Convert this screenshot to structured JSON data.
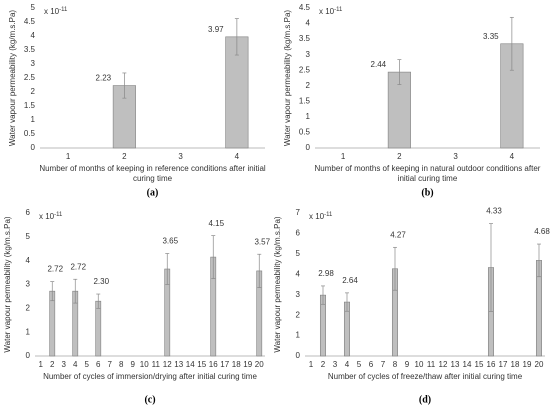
{
  "chart_data": [
    {
      "type": "bar",
      "caption": "(a)",
      "y_label": "Water vapour permeability (kg/m.s.Pa)",
      "y_multiplier": {
        "base": "x 10",
        "exponent": "-11"
      },
      "x_label": "Number of months of keeping in reference conditions after initial curing time",
      "categories": [
        "1",
        "2",
        "3",
        "4"
      ],
      "values": [
        null,
        2.23,
        null,
        3.97
      ],
      "errors": [
        null,
        0.45,
        null,
        0.65
      ],
      "color": "#bfbfbf",
      "ylim": [
        0,
        5
      ],
      "yticks": [
        0,
        0.5,
        1,
        1.5,
        2,
        2.5,
        3,
        3.5,
        4,
        4.5,
        5
      ],
      "grid": false
    },
    {
      "type": "bar",
      "caption": "(b)",
      "y_label": "Water vapour permeability (kg/m.s.Pa)",
      "y_multiplier": {
        "base": "x 10",
        "exponent": "-11"
      },
      "x_label": "Number of months of keeping in natural outdoor conditions after initial curing time",
      "categories": [
        "1",
        "2",
        "3",
        "4"
      ],
      "values": [
        null,
        2.44,
        null,
        3.35
      ],
      "errors": [
        null,
        0.4,
        null,
        0.85
      ],
      "color": "#bfbfbf",
      "ylim": [
        0,
        4.5
      ],
      "yticks": [
        0,
        0.5,
        1,
        1.5,
        2,
        2.5,
        3,
        3.5,
        4,
        4.5
      ],
      "grid": false
    },
    {
      "type": "bar",
      "caption": "(c)",
      "y_label": "Water vapour permeability (kg/m.s.Pa)",
      "y_multiplier": {
        "base": "x 10",
        "exponent": "-11"
      },
      "x_label": "Number of cycles of immersion/drying  after initial curing time",
      "categories": [
        "1",
        "2",
        "3",
        "4",
        "5",
        "6",
        "7",
        "8",
        "9",
        "10",
        "11",
        "12",
        "13",
        "14",
        "15",
        "16",
        "17",
        "18",
        "19",
        "20"
      ],
      "values": [
        null,
        2.72,
        null,
        2.72,
        null,
        2.3,
        null,
        null,
        null,
        null,
        null,
        3.65,
        null,
        null,
        null,
        4.15,
        null,
        null,
        null,
        3.57
      ],
      "value_labels": [
        null,
        "2.72",
        null,
        "2.72",
        null,
        "2.30",
        null,
        null,
        null,
        null,
        null,
        "3.65",
        null,
        null,
        null,
        "4.15",
        null,
        null,
        null,
        "3.57"
      ],
      "errors": [
        null,
        0.4,
        null,
        0.5,
        null,
        0.3,
        null,
        null,
        null,
        null,
        null,
        0.65,
        null,
        null,
        null,
        0.9,
        null,
        null,
        null,
        0.7
      ],
      "color": "#bfbfbf",
      "ylim": [
        0,
        6
      ],
      "yticks": [
        0,
        1,
        2,
        3,
        4,
        5,
        6
      ],
      "grid": false
    },
    {
      "type": "bar",
      "caption": "(d)",
      "y_label": "Water vapour permeability (kg/m.s.Pa)",
      "y_multiplier": {
        "base": "x 10",
        "exponent": "-11"
      },
      "x_label": "Number of cycles of freeze/thaw after initial curing time",
      "categories": [
        "1",
        "2",
        "3",
        "4",
        "5",
        "6",
        "7",
        "8",
        "9",
        "10",
        "11",
        "12",
        "13",
        "14",
        "15",
        "16",
        "17",
        "18",
        "19",
        "20"
      ],
      "values": [
        null,
        2.98,
        null,
        2.64,
        null,
        null,
        null,
        4.27,
        null,
        null,
        null,
        null,
        null,
        null,
        null,
        4.33,
        null,
        null,
        null,
        4.68
      ],
      "errors": [
        null,
        0.45,
        null,
        0.45,
        null,
        null,
        null,
        1.05,
        null,
        null,
        null,
        null,
        null,
        null,
        null,
        2.15,
        null,
        null,
        null,
        0.8
      ],
      "color": "#bfbfbf",
      "ylim": [
        0,
        7
      ],
      "yticks": [
        0,
        1,
        2,
        3,
        4,
        5,
        6,
        7
      ],
      "grid": false
    }
  ]
}
